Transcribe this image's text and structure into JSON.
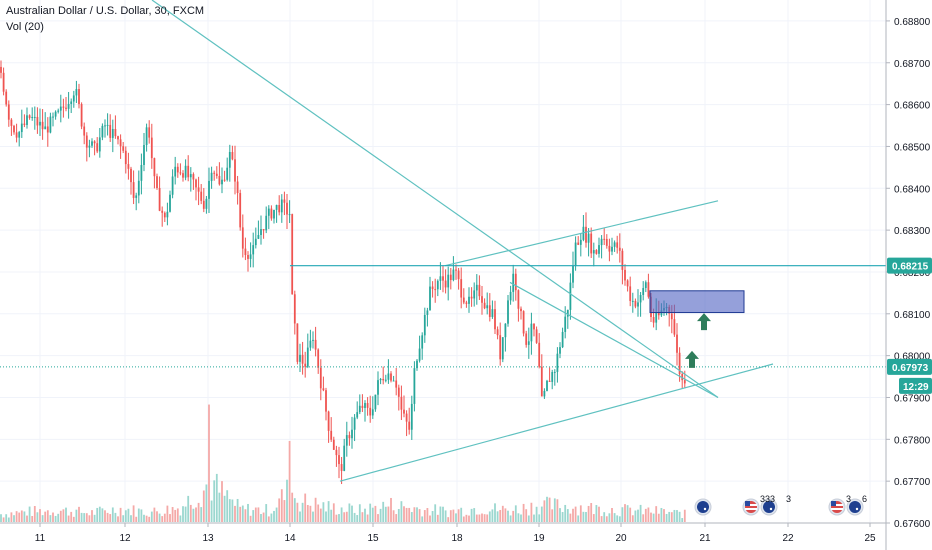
{
  "chart_data": {
    "type": "candlestick",
    "title": "Australian Dollar / U.S. Dollar, 30, FXCM",
    "indicator": "Vol (20)",
    "x_tick_labels": [
      "11",
      "12",
      "13",
      "14",
      "15",
      "18",
      "19",
      "20",
      "21",
      "22",
      "25"
    ],
    "y_tick_labels": [
      "0.68800",
      "0.68700",
      "0.68600",
      "0.68500",
      "0.68400",
      "0.68300",
      "0.68200",
      "0.68100",
      "0.68000",
      "0.67900",
      "0.67800",
      "0.67700",
      "0.67600"
    ],
    "ylim": [
      0.676,
      0.6885
    ],
    "grid": true,
    "price_path": [
      [
        0,
        0.6869
      ],
      [
        10,
        0.6856
      ],
      [
        18,
        0.6853
      ],
      [
        30,
        0.6857
      ],
      [
        45,
        0.6854
      ],
      [
        60,
        0.6858
      ],
      [
        75,
        0.6864
      ],
      [
        85,
        0.6852
      ],
      [
        95,
        0.6849
      ],
      [
        105,
        0.6855
      ],
      [
        115,
        0.6852
      ],
      [
        125,
        0.6848
      ],
      [
        135,
        0.6836
      ],
      [
        142,
        0.6848
      ],
      [
        148,
        0.6856
      ],
      [
        155,
        0.684
      ],
      [
        165,
        0.6832
      ],
      [
        175,
        0.6845
      ],
      [
        185,
        0.6844
      ],
      [
        195,
        0.684
      ],
      [
        205,
        0.6836
      ],
      [
        212,
        0.6846
      ],
      [
        220,
        0.684
      ],
      [
        230,
        0.6848
      ],
      [
        236,
        0.6842
      ],
      [
        242,
        0.6826
      ],
      [
        252,
        0.6824
      ],
      [
        260,
        0.683
      ],
      [
        270,
        0.6834
      ],
      [
        280,
        0.6836
      ],
      [
        290,
        0.6834
      ],
      [
        292,
        0.6814
      ],
      [
        297,
        0.68
      ],
      [
        305,
        0.6798
      ],
      [
        313,
        0.6805
      ],
      [
        320,
        0.6795
      ],
      [
        328,
        0.6784
      ],
      [
        334,
        0.6778
      ],
      [
        340,
        0.6772
      ],
      [
        347,
        0.678
      ],
      [
        355,
        0.6785
      ],
      [
        362,
        0.6788
      ],
      [
        370,
        0.6786
      ],
      [
        378,
        0.6793
      ],
      [
        385,
        0.6796
      ],
      [
        395,
        0.6795
      ],
      [
        402,
        0.6786
      ],
      [
        410,
        0.6782
      ],
      [
        415,
        0.6798
      ],
      [
        422,
        0.6806
      ],
      [
        430,
        0.6815
      ],
      [
        438,
        0.6818
      ],
      [
        447,
        0.6818
      ],
      [
        455,
        0.682
      ],
      [
        462,
        0.6815
      ],
      [
        470,
        0.6812
      ],
      [
        478,
        0.6816
      ],
      [
        486,
        0.6812
      ],
      [
        493,
        0.681
      ],
      [
        500,
        0.68
      ],
      [
        507,
        0.6812
      ],
      [
        514,
        0.682
      ],
      [
        520,
        0.681
      ],
      [
        527,
        0.6803
      ],
      [
        533,
        0.6807
      ],
      [
        538,
        0.68
      ],
      [
        542,
        0.6788
      ],
      [
        548,
        0.6794
      ],
      [
        555,
        0.6797
      ],
      [
        562,
        0.6805
      ],
      [
        568,
        0.6812
      ],
      [
        575,
        0.6826
      ],
      [
        582,
        0.683
      ],
      [
        588,
        0.6828
      ],
      [
        595,
        0.6824
      ],
      [
        602,
        0.6829
      ],
      [
        610,
        0.6826
      ],
      [
        618,
        0.6826
      ],
      [
        625,
        0.6818
      ],
      [
        632,
        0.6813
      ],
      [
        640,
        0.6813
      ],
      [
        646,
        0.6818
      ],
      [
        652,
        0.6808
      ],
      [
        658,
        0.6809
      ],
      [
        665,
        0.6812
      ],
      [
        672,
        0.681
      ],
      [
        678,
        0.6798
      ],
      [
        683,
        0.6793
      ],
      [
        686,
        0.6796
      ]
    ],
    "volume_path": [
      [
        0,
        0.12
      ],
      [
        30,
        0.16
      ],
      [
        60,
        0.18
      ],
      [
        90,
        0.14
      ],
      [
        120,
        0.2
      ],
      [
        150,
        0.15
      ],
      [
        180,
        0.22
      ],
      [
        210,
        0.6
      ],
      [
        240,
        0.2
      ],
      [
        270,
        0.18
      ],
      [
        290,
        0.5
      ],
      [
        300,
        0.32
      ],
      [
        330,
        0.22
      ],
      [
        360,
        0.18
      ],
      [
        390,
        0.26
      ],
      [
        420,
        0.2
      ],
      [
        450,
        0.16
      ],
      [
        480,
        0.22
      ],
      [
        510,
        0.18
      ],
      [
        540,
        0.26
      ],
      [
        570,
        0.24
      ],
      [
        600,
        0.2
      ],
      [
        630,
        0.18
      ],
      [
        660,
        0.16
      ],
      [
        686,
        0.12
      ]
    ],
    "horizontal_lines": [
      {
        "price": 0.68215,
        "style": "solid",
        "label": "0.68215",
        "label_color": "#26a69a"
      },
      {
        "price": 0.67973,
        "style": "dotted",
        "label": "0.67973",
        "label_color": "#26a69a"
      }
    ],
    "trendlines": [
      {
        "from": [
          152,
          0.6885
        ],
        "to": [
          718,
          0.679
        ]
      },
      {
        "from": [
          510,
          0.68175
        ],
        "to": [
          718,
          0.679
        ]
      },
      {
        "from": [
          445,
          0.68215
        ],
        "to": [
          718,
          0.6837
        ]
      },
      {
        "from": [
          340,
          0.677
        ],
        "to": [
          773,
          0.6798
        ]
      }
    ],
    "zone": {
      "x1": 650,
      "x2": 744,
      "top": 0.68155,
      "bottom": 0.68103
    },
    "arrows": [
      {
        "x": 704,
        "price": 0.6808
      },
      {
        "x": 692,
        "price": 0.6799
      }
    ],
    "countdown": "12:29",
    "event_badges": [
      "333",
      "3",
      "3",
      "6"
    ]
  }
}
